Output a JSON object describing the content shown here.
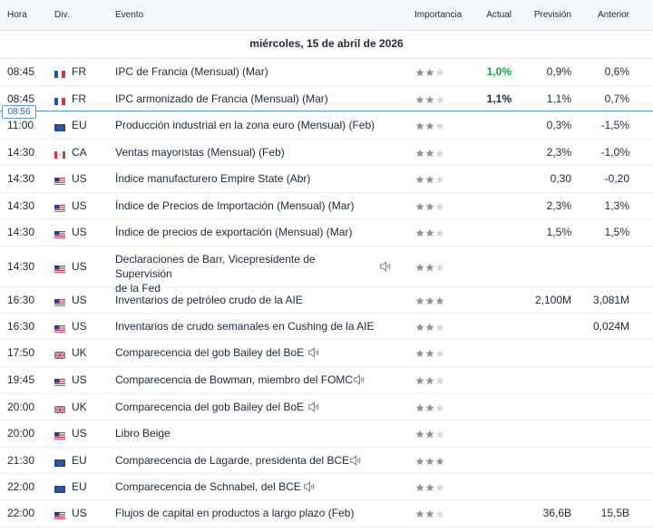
{
  "header": {
    "time": "Hora",
    "currency": "Div.",
    "event": "Evento",
    "importance": "Importancia",
    "actual": "Actual",
    "forecast": "Previsión",
    "previous": "Anterior"
  },
  "date_label": "miércoles, 15 de abril de 2026",
  "current_time": "08:56",
  "colors": {
    "actual_positive": "#16a34a",
    "now_line": "#5b9bd5",
    "star_filled": "#8e939b",
    "star_empty": "#d5d8dc"
  },
  "events": [
    {
      "time": "08:45",
      "currency": "FR",
      "flag": "france-flag-icon",
      "event": "IPC de Francia (Mensual) (Mar)",
      "stars": 2,
      "speech": false,
      "actual": "1,0%",
      "forecast": "0,9%",
      "previous": "0,6%"
    },
    {
      "time": "08:45",
      "currency": "FR",
      "flag": "france-flag-icon",
      "event": "IPC armonizado de Francia (Mensual) (Mar)",
      "stars": 2,
      "speech": false,
      "actual": "1,1%",
      "forecast": "1,1%",
      "previous": "0,7%"
    },
    {
      "time": "11:00",
      "currency": "EU",
      "flag": "eu-flag-icon",
      "event": "Producción industrial en la zona euro (Mensual) (Feb)",
      "stars": 2,
      "speech": false,
      "actual": "",
      "forecast": "0,3%",
      "previous": "-1,5%"
    },
    {
      "time": "14:30",
      "currency": "CA",
      "flag": "canada-flag-icon",
      "event": "Ventas mayoristas (Mensual) (Feb)",
      "stars": 2,
      "speech": false,
      "actual": "",
      "forecast": "2,3%",
      "previous": "-1,0%"
    },
    {
      "time": "14:30",
      "currency": "US",
      "flag": "us-flag-icon",
      "event": "Índice manufacturero Empire State  (Abr)",
      "stars": 2,
      "speech": false,
      "actual": "",
      "forecast": "0,30",
      "previous": "-0,20"
    },
    {
      "time": "14:30",
      "currency": "US",
      "flag": "us-flag-icon",
      "event": "Índice de Precios de Importación (Mensual) (Mar)",
      "stars": 2,
      "speech": false,
      "actual": "",
      "forecast": "2,3%",
      "previous": "1,3%"
    },
    {
      "time": "14:30",
      "currency": "US",
      "flag": "us-flag-icon",
      "event": "Índice de precios de exportación (Mensual) (Mar)",
      "stars": 2,
      "speech": false,
      "actual": "",
      "forecast": "1,5%",
      "previous": "1,5%"
    },
    {
      "time": "14:30",
      "currency": "US",
      "flag": "us-flag-icon",
      "event_line1": "Declaraciones de Barr, Vicepresidente de Supervisión",
      "event_line2": "de la Fed",
      "stars": 2,
      "speech": true,
      "actual": "",
      "forecast": "",
      "previous": ""
    },
    {
      "time": "16:30",
      "currency": "US",
      "flag": "us-flag-icon",
      "event": "Inventarios de petróleo crudo de la AIE",
      "stars": 3,
      "speech": false,
      "actual": "",
      "forecast": "2,100M",
      "previous": "3,081M"
    },
    {
      "time": "16:30",
      "currency": "US",
      "flag": "us-flag-icon",
      "event": "Inventarios de crudo semanales en Cushing de la AIE",
      "stars": 2,
      "speech": false,
      "actual": "",
      "forecast": "",
      "previous": "0,024M"
    },
    {
      "time": "17:50",
      "currency": "UK",
      "flag": "uk-flag-icon",
      "event": "Comparecencia del gob Bailey del BoE",
      "stars": 2,
      "speech": true,
      "actual": "",
      "forecast": "",
      "previous": ""
    },
    {
      "time": "19:45",
      "currency": "US",
      "flag": "us-flag-icon",
      "event": "Comparecencia de Bowman, miembro del FOMC",
      "stars": 2,
      "speech": true,
      "actual": "",
      "forecast": "",
      "previous": ""
    },
    {
      "time": "20:00",
      "currency": "UK",
      "flag": "uk-flag-icon",
      "event": "Comparecencia del gob Bailey del BoE",
      "stars": 2,
      "speech": true,
      "actual": "",
      "forecast": "",
      "previous": ""
    },
    {
      "time": "20:00",
      "currency": "US",
      "flag": "us-flag-icon",
      "event": "Libro Beige",
      "stars": 2,
      "speech": false,
      "actual": "",
      "forecast": "",
      "previous": ""
    },
    {
      "time": "21:30",
      "currency": "EU",
      "flag": "eu-flag-icon",
      "event": "Comparecencia de Lagarde, presidenta del BCE",
      "stars": 3,
      "speech": true,
      "actual": "",
      "forecast": "",
      "previous": ""
    },
    {
      "time": "22:00",
      "currency": "EU",
      "flag": "eu-flag-icon",
      "event": "Comparecencia de Schnabel, del BCE",
      "stars": 2,
      "speech": true,
      "actual": "",
      "forecast": "",
      "previous": ""
    },
    {
      "time": "22:00",
      "currency": "US",
      "flag": "us-flag-icon",
      "event": "Flujos de capital en productos a largo plazo  (Feb)",
      "stars": 2,
      "speech": false,
      "actual": "",
      "forecast": "36,6B",
      "previous": "15,5B"
    }
  ]
}
